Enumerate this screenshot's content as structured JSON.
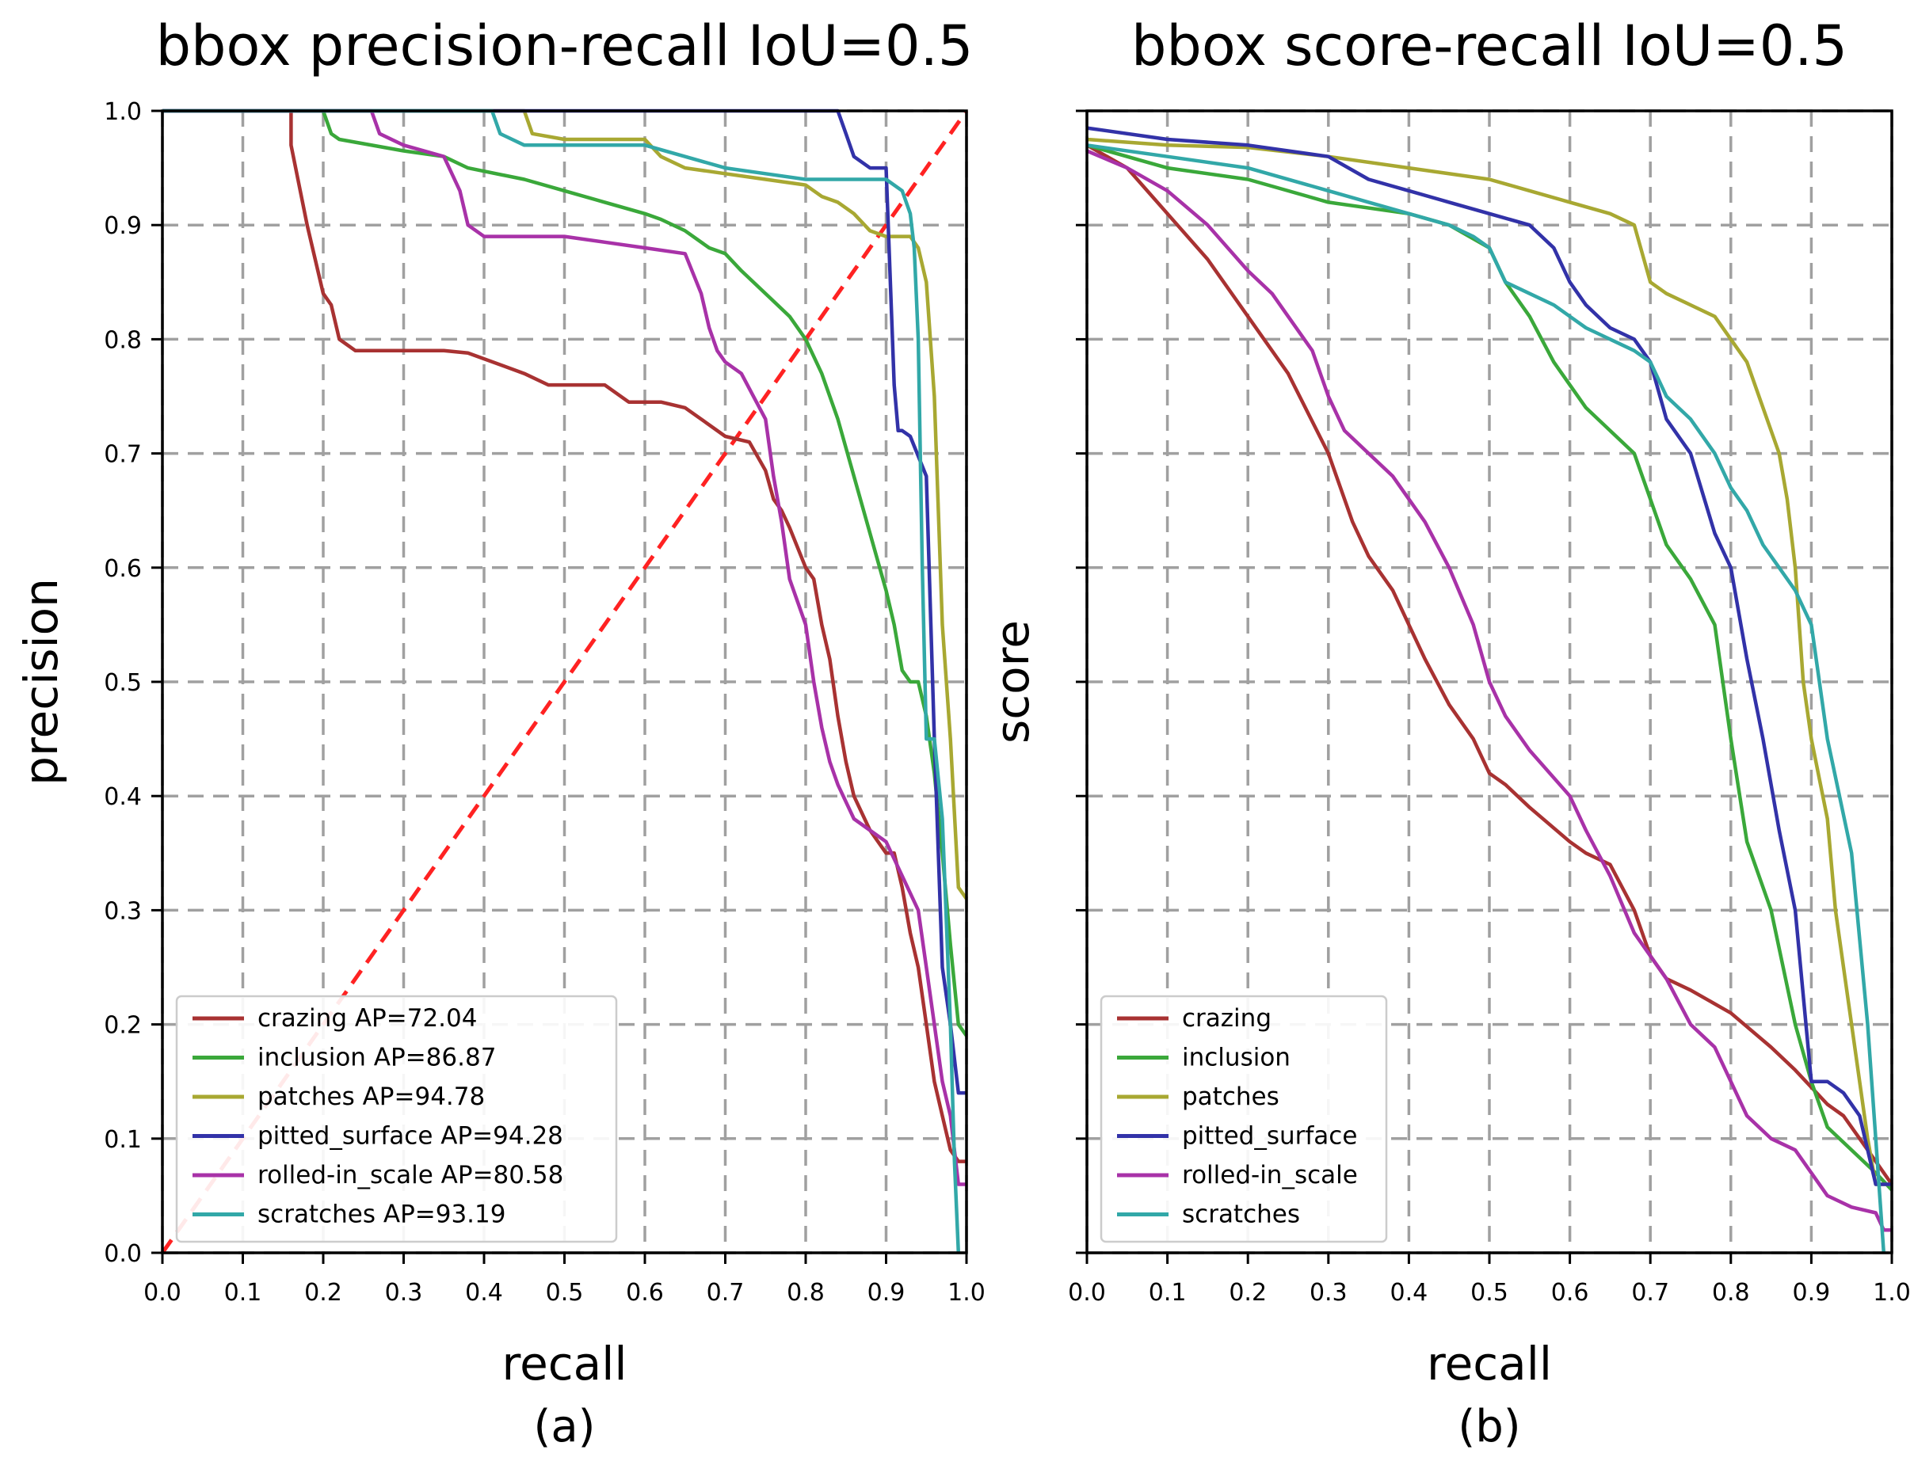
{
  "chart_data": [
    {
      "type": "line",
      "title": "bbox precision-recall IoU=0.5",
      "xlabel": "recall",
      "ylabel": "precision",
      "caption": "(a)",
      "xlim": [
        0,
        1
      ],
      "ylim": [
        0,
        1
      ],
      "xticks": [
        "0.0",
        "0.1",
        "0.2",
        "0.3",
        "0.4",
        "0.5",
        "0.6",
        "0.7",
        "0.8",
        "0.9",
        "1.0"
      ],
      "yticks": [
        "0.0",
        "0.1",
        "0.2",
        "0.3",
        "0.4",
        "0.5",
        "0.6",
        "0.7",
        "0.8",
        "0.9",
        "1.0"
      ],
      "grid": true,
      "legend_position": "lower-left",
      "reference_line": {
        "x": [
          0,
          1
        ],
        "y": [
          0,
          1
        ],
        "color": "#ff2222",
        "style": "dashed"
      },
      "series": [
        {
          "name": "crazing AP=72.04",
          "color": "#a83232",
          "x": [
            0.0,
            0.16,
            0.16,
            0.18,
            0.2,
            0.21,
            0.22,
            0.23,
            0.24,
            0.3,
            0.35,
            0.38,
            0.45,
            0.48,
            0.5,
            0.55,
            0.58,
            0.62,
            0.65,
            0.67,
            0.7,
            0.73,
            0.75,
            0.76,
            0.77,
            0.78,
            0.8,
            0.81,
            0.82,
            0.83,
            0.84,
            0.85,
            0.86,
            0.88,
            0.9,
            0.91,
            0.92,
            0.93,
            0.94,
            0.95,
            0.96,
            0.97,
            0.98,
            0.99,
            1.0
          ],
          "y": [
            1.0,
            1.0,
            0.97,
            0.9,
            0.84,
            0.83,
            0.8,
            0.795,
            0.79,
            0.79,
            0.79,
            0.788,
            0.77,
            0.76,
            0.76,
            0.76,
            0.745,
            0.745,
            0.74,
            0.73,
            0.715,
            0.71,
            0.685,
            0.66,
            0.65,
            0.635,
            0.6,
            0.59,
            0.55,
            0.52,
            0.47,
            0.43,
            0.4,
            0.37,
            0.35,
            0.35,
            0.32,
            0.28,
            0.25,
            0.2,
            0.15,
            0.12,
            0.09,
            0.08,
            0.08
          ]
        },
        {
          "name": "inclusion AP=86.87",
          "color": "#3aa83a",
          "x": [
            0.0,
            0.2,
            0.21,
            0.22,
            0.3,
            0.35,
            0.38,
            0.45,
            0.5,
            0.55,
            0.6,
            0.62,
            0.65,
            0.68,
            0.7,
            0.72,
            0.75,
            0.78,
            0.8,
            0.82,
            0.84,
            0.86,
            0.88,
            0.9,
            0.91,
            0.92,
            0.93,
            0.94,
            0.95,
            0.96,
            0.97,
            0.98,
            0.99,
            1.0
          ],
          "y": [
            1.0,
            1.0,
            0.98,
            0.975,
            0.965,
            0.96,
            0.95,
            0.94,
            0.93,
            0.92,
            0.91,
            0.905,
            0.895,
            0.88,
            0.875,
            0.86,
            0.84,
            0.82,
            0.8,
            0.77,
            0.73,
            0.68,
            0.63,
            0.58,
            0.55,
            0.51,
            0.5,
            0.5,
            0.47,
            0.42,
            0.35,
            0.27,
            0.2,
            0.19
          ]
        },
        {
          "name": "patches AP=94.78",
          "color": "#a8a832",
          "x": [
            0.0,
            0.45,
            0.46,
            0.5,
            0.55,
            0.6,
            0.62,
            0.65,
            0.7,
            0.75,
            0.8,
            0.82,
            0.84,
            0.86,
            0.88,
            0.9,
            0.92,
            0.93,
            0.94,
            0.95,
            0.96,
            0.97,
            0.98,
            0.99,
            1.0
          ],
          "y": [
            1.0,
            1.0,
            0.98,
            0.975,
            0.975,
            0.975,
            0.96,
            0.95,
            0.945,
            0.94,
            0.935,
            0.925,
            0.92,
            0.91,
            0.895,
            0.89,
            0.89,
            0.89,
            0.88,
            0.85,
            0.75,
            0.55,
            0.45,
            0.32,
            0.31
          ]
        },
        {
          "name": "pitted_surface AP=94.28",
          "color": "#3232a8",
          "x": [
            0.0,
            0.5,
            0.7,
            0.8,
            0.82,
            0.84,
            0.85,
            0.86,
            0.88,
            0.9,
            0.91,
            0.915,
            0.92,
            0.93,
            0.95,
            0.96,
            0.97,
            0.98,
            0.99,
            1.0
          ],
          "y": [
            1.0,
            1.0,
            1.0,
            1.0,
            1.0,
            1.0,
            0.98,
            0.96,
            0.95,
            0.95,
            0.76,
            0.72,
            0.72,
            0.715,
            0.68,
            0.45,
            0.25,
            0.2,
            0.14,
            0.14
          ]
        },
        {
          "name": "rolled-in_scale AP=80.58",
          "color": "#a832a8",
          "x": [
            0.0,
            0.26,
            0.27,
            0.3,
            0.35,
            0.37,
            0.38,
            0.4,
            0.5,
            0.55,
            0.6,
            0.65,
            0.67,
            0.68,
            0.69,
            0.7,
            0.72,
            0.75,
            0.76,
            0.77,
            0.78,
            0.8,
            0.81,
            0.82,
            0.83,
            0.84,
            0.86,
            0.88,
            0.9,
            0.92,
            0.94,
            0.95,
            0.96,
            0.97,
            0.98,
            0.99,
            1.0
          ],
          "y": [
            1.0,
            1.0,
            0.98,
            0.97,
            0.96,
            0.93,
            0.9,
            0.89,
            0.89,
            0.885,
            0.88,
            0.875,
            0.84,
            0.81,
            0.79,
            0.78,
            0.77,
            0.73,
            0.68,
            0.64,
            0.59,
            0.55,
            0.5,
            0.46,
            0.43,
            0.41,
            0.38,
            0.37,
            0.36,
            0.33,
            0.3,
            0.25,
            0.2,
            0.15,
            0.12,
            0.06,
            0.06
          ]
        },
        {
          "name": "scratches AP=93.19",
          "color": "#32a8a8",
          "x": [
            0.0,
            0.41,
            0.42,
            0.45,
            0.55,
            0.6,
            0.65,
            0.7,
            0.75,
            0.8,
            0.85,
            0.88,
            0.9,
            0.92,
            0.93,
            0.935,
            0.94,
            0.945,
            0.95,
            0.96,
            0.97,
            0.98,
            0.985,
            0.99
          ],
          "y": [
            1.0,
            1.0,
            0.98,
            0.97,
            0.97,
            0.97,
            0.96,
            0.95,
            0.945,
            0.94,
            0.94,
            0.94,
            0.94,
            0.93,
            0.91,
            0.88,
            0.8,
            0.6,
            0.45,
            0.45,
            0.38,
            0.2,
            0.08,
            0.0
          ]
        }
      ]
    },
    {
      "type": "line",
      "title": "bbox score-recall IoU=0.5",
      "xlabel": "recall",
      "ylabel": "score",
      "caption": "(b)",
      "xlim": [
        0,
        1
      ],
      "ylim": [
        0,
        1
      ],
      "xticks": [
        "0.0",
        "0.1",
        "0.2",
        "0.3",
        "0.4",
        "0.5",
        "0.6",
        "0.7",
        "0.8",
        "0.9",
        "1.0"
      ],
      "yticks": [],
      "grid": true,
      "legend_position": "lower-left",
      "series": [
        {
          "name": "crazing",
          "color": "#a83232",
          "x": [
            0.0,
            0.05,
            0.1,
            0.15,
            0.2,
            0.25,
            0.3,
            0.33,
            0.35,
            0.38,
            0.4,
            0.42,
            0.45,
            0.48,
            0.5,
            0.52,
            0.55,
            0.6,
            0.62,
            0.65,
            0.68,
            0.7,
            0.72,
            0.75,
            0.8,
            0.85,
            0.88,
            0.9,
            0.92,
            0.94,
            0.96,
            0.98,
            1.0
          ],
          "y": [
            0.97,
            0.95,
            0.91,
            0.87,
            0.82,
            0.77,
            0.7,
            0.64,
            0.61,
            0.58,
            0.55,
            0.52,
            0.48,
            0.45,
            0.42,
            0.41,
            0.39,
            0.36,
            0.35,
            0.34,
            0.3,
            0.26,
            0.24,
            0.23,
            0.21,
            0.18,
            0.16,
            0.145,
            0.13,
            0.12,
            0.1,
            0.08,
            0.06
          ]
        },
        {
          "name": "inclusion",
          "color": "#3aa83a",
          "x": [
            0.0,
            0.1,
            0.2,
            0.3,
            0.4,
            0.45,
            0.5,
            0.52,
            0.55,
            0.58,
            0.6,
            0.62,
            0.65,
            0.68,
            0.7,
            0.72,
            0.75,
            0.78,
            0.8,
            0.82,
            0.85,
            0.88,
            0.9,
            0.92,
            0.95,
            0.98,
            1.0
          ],
          "y": [
            0.97,
            0.95,
            0.94,
            0.92,
            0.91,
            0.9,
            0.88,
            0.85,
            0.82,
            0.78,
            0.76,
            0.74,
            0.72,
            0.7,
            0.66,
            0.62,
            0.59,
            0.55,
            0.45,
            0.36,
            0.3,
            0.2,
            0.15,
            0.11,
            0.09,
            0.07,
            0.055
          ]
        },
        {
          "name": "patches",
          "color": "#a8a832",
          "x": [
            0.0,
            0.1,
            0.2,
            0.3,
            0.4,
            0.5,
            0.55,
            0.6,
            0.65,
            0.68,
            0.7,
            0.72,
            0.75,
            0.78,
            0.8,
            0.82,
            0.84,
            0.86,
            0.87,
            0.88,
            0.89,
            0.9,
            0.92,
            0.93,
            0.95,
            0.97,
            0.98,
            1.0
          ],
          "y": [
            0.975,
            0.97,
            0.968,
            0.96,
            0.95,
            0.94,
            0.93,
            0.92,
            0.91,
            0.9,
            0.85,
            0.84,
            0.83,
            0.82,
            0.8,
            0.78,
            0.74,
            0.7,
            0.66,
            0.6,
            0.5,
            0.45,
            0.38,
            0.3,
            0.2,
            0.1,
            0.06,
            0.06
          ]
        },
        {
          "name": "pitted_surface",
          "color": "#3232a8",
          "x": [
            0.0,
            0.1,
            0.2,
            0.3,
            0.35,
            0.4,
            0.45,
            0.5,
            0.55,
            0.58,
            0.6,
            0.62,
            0.65,
            0.68,
            0.7,
            0.72,
            0.75,
            0.78,
            0.8,
            0.82,
            0.84,
            0.86,
            0.88,
            0.9,
            0.92,
            0.94,
            0.96,
            0.98,
            1.0
          ],
          "y": [
            0.985,
            0.975,
            0.97,
            0.96,
            0.94,
            0.93,
            0.92,
            0.91,
            0.9,
            0.88,
            0.85,
            0.83,
            0.81,
            0.8,
            0.78,
            0.73,
            0.7,
            0.63,
            0.6,
            0.52,
            0.45,
            0.37,
            0.3,
            0.15,
            0.15,
            0.14,
            0.12,
            0.06,
            0.06
          ]
        },
        {
          "name": "rolled-in_scale",
          "color": "#a832a8",
          "x": [
            0.0,
            0.05,
            0.1,
            0.15,
            0.2,
            0.23,
            0.25,
            0.28,
            0.3,
            0.32,
            0.35,
            0.38,
            0.4,
            0.42,
            0.45,
            0.48,
            0.5,
            0.52,
            0.55,
            0.6,
            0.62,
            0.65,
            0.68,
            0.7,
            0.72,
            0.75,
            0.78,
            0.8,
            0.82,
            0.85,
            0.88,
            0.9,
            0.92,
            0.95,
            0.98,
            0.99,
            1.0
          ],
          "y": [
            0.965,
            0.95,
            0.93,
            0.9,
            0.86,
            0.84,
            0.82,
            0.79,
            0.75,
            0.72,
            0.7,
            0.68,
            0.66,
            0.64,
            0.6,
            0.55,
            0.5,
            0.47,
            0.44,
            0.4,
            0.37,
            0.33,
            0.28,
            0.26,
            0.24,
            0.2,
            0.18,
            0.15,
            0.12,
            0.1,
            0.09,
            0.07,
            0.05,
            0.04,
            0.035,
            0.02,
            0.02
          ]
        },
        {
          "name": "scratches",
          "color": "#32a8a8",
          "x": [
            0.0,
            0.1,
            0.2,
            0.3,
            0.35,
            0.4,
            0.45,
            0.48,
            0.5,
            0.52,
            0.55,
            0.58,
            0.6,
            0.62,
            0.65,
            0.68,
            0.7,
            0.72,
            0.75,
            0.78,
            0.8,
            0.82,
            0.84,
            0.86,
            0.88,
            0.9,
            0.91,
            0.92,
            0.95,
            0.97,
            0.98,
            0.99
          ],
          "y": [
            0.97,
            0.96,
            0.95,
            0.93,
            0.92,
            0.91,
            0.9,
            0.89,
            0.88,
            0.85,
            0.84,
            0.83,
            0.82,
            0.81,
            0.8,
            0.79,
            0.78,
            0.75,
            0.73,
            0.7,
            0.67,
            0.65,
            0.62,
            0.6,
            0.58,
            0.55,
            0.5,
            0.45,
            0.35,
            0.2,
            0.1,
            0.0
          ]
        }
      ]
    }
  ]
}
